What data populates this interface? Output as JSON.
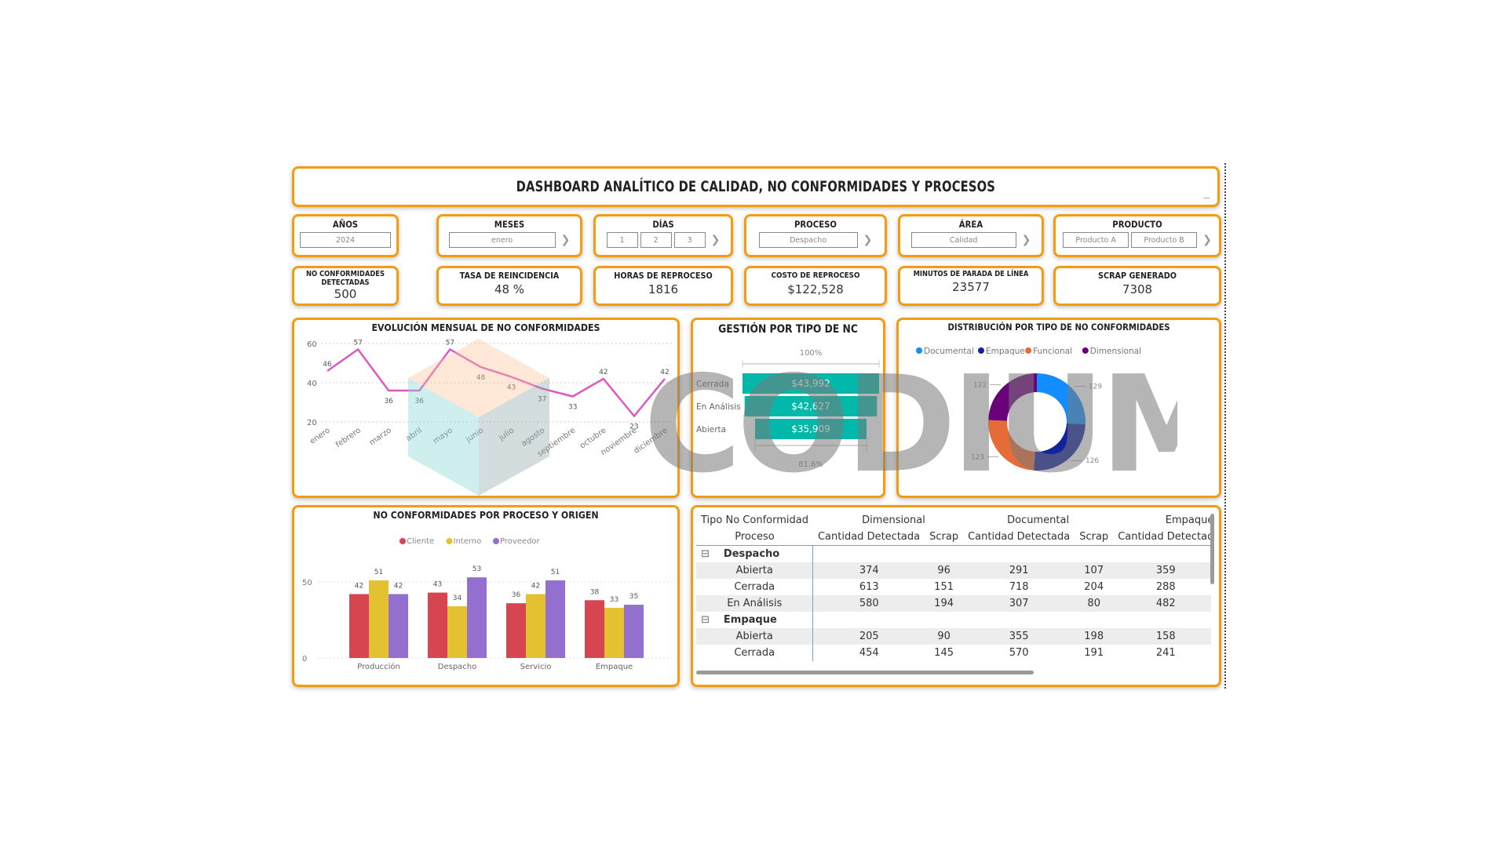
{
  "header": {
    "title": "DASHBOARD ANALÍTICO DE CALIDAD, NO CONFORMIDADES Y PROCESOS"
  },
  "slicers": [
    {
      "label": "AÑOS",
      "values": [
        "2024"
      ],
      "has_next": false
    },
    {
      "label": "MESES",
      "values": [
        "enero"
      ],
      "has_next": true
    },
    {
      "label": "DÍAS",
      "values": [
        "1",
        "2",
        "3"
      ],
      "has_next": true
    },
    {
      "label": "PROCESO",
      "values": [
        "Despacho"
      ],
      "has_next": true
    },
    {
      "label": "ÁREA",
      "values": [
        "Calidad"
      ],
      "has_next": true
    },
    {
      "label": "PRODUCTO",
      "values": [
        "Producto A",
        "Producto B"
      ],
      "has_next": true
    }
  ],
  "kpis": [
    {
      "label": "NO CONFORMIDADES DETECTADAS",
      "value": "500"
    },
    {
      "label": "TASA DE REINCIDENCIA",
      "value": "48 %"
    },
    {
      "label": "HORAS DE REPROCESO",
      "value": "1816"
    },
    {
      "label": "COSTO DE REPROCESO",
      "value": "$122,528"
    },
    {
      "label": "MINUTOS DE PARADA DE LÍNEA",
      "value": "23577"
    },
    {
      "label": "SCRAP GENERADO",
      "value": "7308"
    }
  ],
  "chart_data": [
    {
      "type": "line",
      "title": "EVOLUCIÓN MENSUAL DE NO CONFORMIDADES",
      "categories": [
        "enero",
        "febrero",
        "marzo",
        "abril",
        "mayo",
        "junio",
        "julio",
        "agosto",
        "septiembre",
        "octubre",
        "noviembre",
        "diciembre"
      ],
      "values": [
        46,
        57,
        36,
        36,
        57,
        48,
        43,
        37,
        33,
        42,
        23,
        42
      ],
      "yticks": [
        "60",
        "40",
        "20"
      ],
      "ylim": [
        20,
        60
      ],
      "color": "#d85bbf",
      "grid": true
    },
    {
      "type": "bar",
      "orientation": "funnel",
      "title": "GESTIÓN POR TIPO DE NC",
      "categories": [
        "Cerrada",
        "En Análisis",
        "Abierta"
      ],
      "values": [
        43992,
        42627,
        35909
      ],
      "value_labels": [
        "$43,992",
        "$42,627",
        "$35,909"
      ],
      "top_label": "100%",
      "bottom_label": "81.6%",
      "color": "#01b8aa"
    },
    {
      "type": "pie",
      "donut": true,
      "title": "DISTRIBUCIÓN POR TIPO DE NO CONFORMIDADES",
      "categories": [
        "Documental",
        "Empaque",
        "Funcional",
        "Dimensional"
      ],
      "values": [
        129,
        126,
        123,
        122
      ],
      "colors": [
        "#118dff",
        "#12239e",
        "#e66c37",
        "#6b007b"
      ],
      "legend_position": "top"
    },
    {
      "type": "bar",
      "title": "NO CONFORMIDADES POR PROCESO Y ORIGEN",
      "categories": [
        "Producción",
        "Despacho",
        "Servicio",
        "Empaque"
      ],
      "series": [
        {
          "name": "Cliente",
          "values": [
            42,
            43,
            36,
            38
          ],
          "color": "#d64550"
        },
        {
          "name": "Interno",
          "values": [
            51,
            34,
            42,
            33
          ],
          "color": "#e3c130"
        },
        {
          "name": "Proveedor",
          "values": [
            42,
            53,
            51,
            35
          ],
          "color": "#9370cf"
        }
      ],
      "yticks": [
        "50",
        "0"
      ],
      "ylim": [
        0,
        60
      ],
      "legend_position": "top"
    }
  ],
  "matrix": {
    "row_header_1": "Tipo No Conformidad",
    "row_header_2": "Proceso",
    "column_groups": [
      "Dimensional",
      "Documental",
      "Empaque"
    ],
    "sub_headers": [
      "Cantidad Detectada",
      "Scrap",
      "Cantidad Detectada",
      "Scrap",
      "Cantidad Detectad"
    ],
    "groups": [
      {
        "name": "Despacho",
        "rows": [
          {
            "label": "Abierta",
            "cells": [
              "374",
              "96",
              "291",
              "107",
              "359"
            ]
          },
          {
            "label": "Cerrada",
            "cells": [
              "613",
              "151",
              "718",
              "204",
              "288"
            ]
          },
          {
            "label": "En Análisis",
            "cells": [
              "580",
              "194",
              "307",
              "80",
              "482"
            ]
          }
        ]
      },
      {
        "name": "Empaque",
        "rows": [
          {
            "label": "Abierta",
            "cells": [
              "205",
              "90",
              "355",
              "198",
              "158"
            ]
          },
          {
            "label": "Cerrada",
            "cells": [
              "454",
              "145",
              "570",
              "191",
              "241"
            ]
          }
        ]
      }
    ],
    "expand_icon": "⊟"
  },
  "watermark": {
    "text": "CODIUM"
  },
  "colors": {
    "border": "#f39c12",
    "teal": "#01b8aa"
  }
}
